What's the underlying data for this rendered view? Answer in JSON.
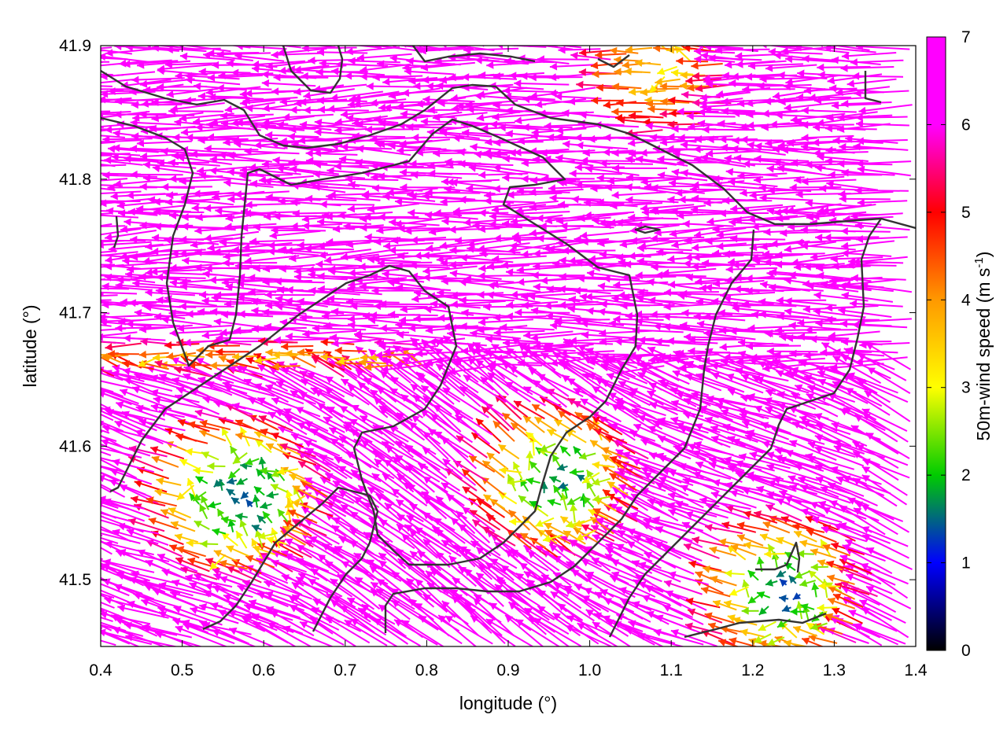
{
  "chart_data": {
    "type": "vector-field",
    "xlabel": "longitude (°)",
    "ylabel": "latitude (°)",
    "colorbar_label": "50m-wind speed (m s",
    "colorbar_label_sup": "-1",
    "colorbar_label_end": ")",
    "xlim": [
      0.4,
      1.4
    ],
    "ylim": [
      41.45,
      41.9
    ],
    "x_ticks": [
      "0.4",
      "0.5",
      "0.6",
      "0.7",
      "0.8",
      "0.9",
      "1.0",
      "1.1",
      "1.2",
      "1.3",
      "1.4"
    ],
    "y_ticks": [
      "41.5",
      "41.6",
      "41.7",
      "41.8",
      "41.9"
    ],
    "colorbar_range": [
      0,
      7
    ],
    "colorbar_ticks": [
      "0",
      "1",
      "2",
      "3",
      "4",
      "5",
      "6",
      "7"
    ],
    "colormap": [
      "#000000",
      "#0000ff",
      "#00cc00",
      "#ffff00",
      "#ff9900",
      "#ff0000",
      "#ff00ff"
    ],
    "grid": false,
    "prevailing_wind": "westward, strong (>7 m s-1) over most of the domain",
    "calm_regions": [
      {
        "lon": 0.58,
        "lat": 41.56,
        "speed": 1.5
      },
      {
        "lon": 0.97,
        "lat": 41.57,
        "speed": 2.0
      },
      {
        "lon": 1.25,
        "lat": 41.49,
        "speed": 2.0
      },
      {
        "lon": 1.1,
        "lat": 41.88,
        "speed": 4.0
      }
    ]
  }
}
